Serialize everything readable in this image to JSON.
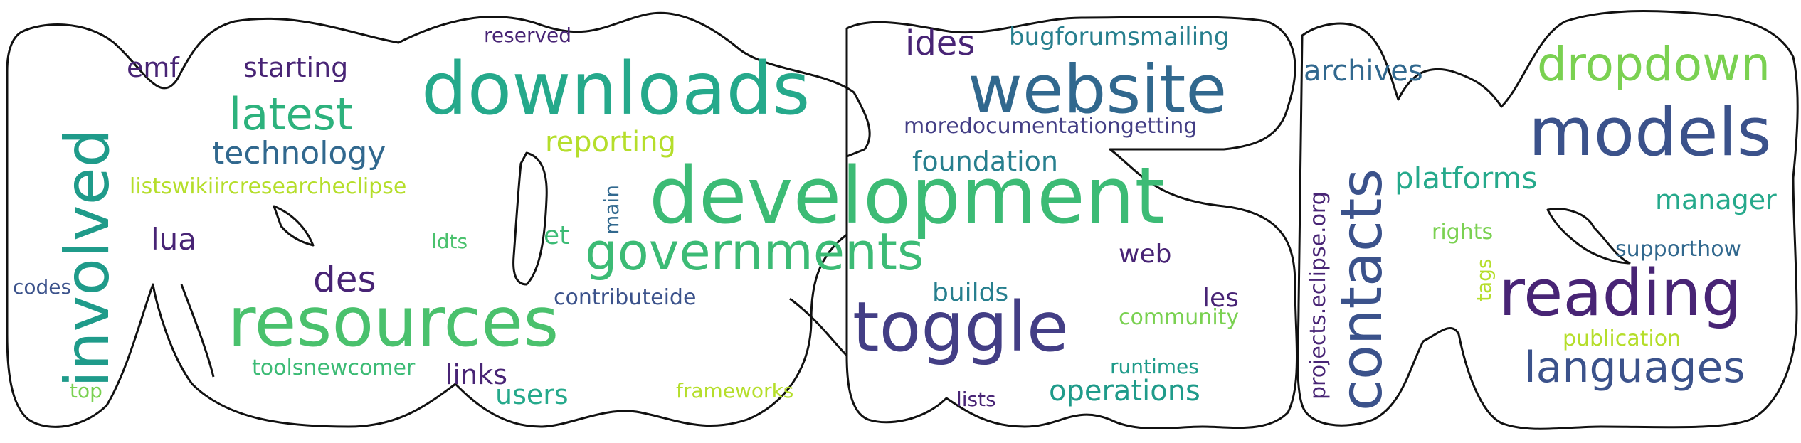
{
  "palette": {
    "teal": "#1f9b8a",
    "green": "#3cbb75",
    "light_green": "#7ad151",
    "lime": "#b5de2b",
    "navy": "#3b528b",
    "blue": "#31688e",
    "indigo": "#433e85",
    "purple": "#482475"
  },
  "words": {
    "development": "development",
    "downloads": "downloads",
    "website": "website",
    "toggle": "toggle",
    "resources": "resources",
    "involved": "involved",
    "governments": "governments",
    "models": "models",
    "reading": "reading",
    "contacts": "contacts",
    "dropdown": "dropdown",
    "latest": "latest",
    "languages": "languages",
    "ides": "ides",
    "des": "des",
    "technology": "technology",
    "reporting": "reporting",
    "platforms": "platforms",
    "foundation": "foundation",
    "archives": "archives",
    "bugforumsmailing": "bugforumsmailing",
    "moredocumentationgetting": "moredocumentationgetting",
    "starting": "starting",
    "emf": "emf",
    "lua": "lua",
    "listswikiircresearcheclipse": "listswikiircresearcheclipse",
    "manager": "manager",
    "operations": "operations",
    "builds": "builds",
    "users": "users",
    "links": "links",
    "toolsnewcomer": "toolsnewcomer",
    "contributeide": "contributeide",
    "web": "web",
    "community": "community",
    "les": "les",
    "runtimes": "runtimes",
    "frameworks": "frameworks",
    "lists": "lists",
    "reserved": "reserved",
    "main": "main",
    "ldts": "ldts",
    "et": "et",
    "codes": "codes",
    "top": "top",
    "rights": "rights",
    "supporthow": "supporthow",
    "publication": "publication",
    "tags": "tags",
    "projects_eclipse_org": "projects.eclipse.org"
  }
}
